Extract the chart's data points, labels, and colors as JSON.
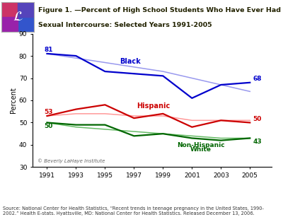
{
  "title_line1": "Figure 1. —Percent of High School Students Who Have Ever Had",
  "title_line2": "Sexual Intercourse: Selected Years 1991-2005",
  "years": [
    1991,
    1993,
    1995,
    1997,
    1999,
    2001,
    2003,
    2005
  ],
  "black_data": [
    81,
    80,
    73,
    72,
    71,
    61,
    67,
    68
  ],
  "hispanic_data": [
    53,
    56,
    58,
    52,
    54,
    48,
    51,
    50
  ],
  "white_data": [
    50,
    49,
    49,
    44,
    45,
    43,
    42,
    43
  ],
  "black_trend": [
    81,
    79,
    77,
    75,
    73,
    70,
    67,
    64
  ],
  "hispanic_trend": [
    53,
    54,
    54,
    53,
    53,
    51,
    51,
    51
  ],
  "white_trend": [
    50,
    48,
    47,
    46,
    45,
    44,
    43,
    43
  ],
  "black_color": "#0000CC",
  "hispanic_color": "#CC0000",
  "white_color": "#006600",
  "black_trend_color": "#9999EE",
  "hispanic_trend_color": "#FF9999",
  "white_trend_color": "#66BB66",
  "black_label": "Black",
  "hispanic_label": "Hispanic",
  "white_label_1": "Non-Hispanic",
  "white_label_2": "White",
  "ylabel": "Percent",
  "ylim": [
    30,
    90
  ],
  "yticks": [
    30,
    40,
    50,
    60,
    70,
    80,
    90
  ],
  "source_text": "Source: National Center for Health Statistics, “Recent trends in teenage pregnancy in the United States, 1990-\n2002.” Health E-stats. Hyattsville, MD: National Center for Health Statistics. Released December 13, 2006.",
  "watermark": "© Beverly LaHaye Institute",
  "bg_color": "#FFFFFF"
}
